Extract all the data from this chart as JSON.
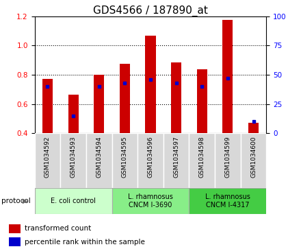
{
  "title": "GDS4566 / 187890_at",
  "samples": [
    "GSM1034592",
    "GSM1034593",
    "GSM1034594",
    "GSM1034595",
    "GSM1034596",
    "GSM1034597",
    "GSM1034598",
    "GSM1034599",
    "GSM1034600"
  ],
  "transformed_counts": [
    0.77,
    0.665,
    0.8,
    0.875,
    1.065,
    0.885,
    0.835,
    1.175,
    0.47
  ],
  "percentile_ranks": [
    40,
    15,
    40,
    43,
    46,
    43,
    40,
    47,
    10
  ],
  "bar_bottom": 0.4,
  "ylim_left": [
    0.4,
    1.2
  ],
  "ylim_right": [
    0,
    100
  ],
  "yticks_left": [
    0.4,
    0.6,
    0.8,
    1.0,
    1.2
  ],
  "yticks_right": [
    0,
    25,
    50,
    75,
    100
  ],
  "bar_color": "#cc0000",
  "marker_color": "#0000cc",
  "bar_width": 0.4,
  "protocols": [
    {
      "label": "E. coli control",
      "indices": [
        0,
        1,
        2
      ],
      "color": "#ccffcc"
    },
    {
      "label": "L. rhamnosus\nCNCM I-3690",
      "indices": [
        3,
        4,
        5
      ],
      "color": "#88ee88"
    },
    {
      "label": "L. rhamnosus\nCNCM I-4317",
      "indices": [
        6,
        7,
        8
      ],
      "color": "#44cc44"
    }
  ],
  "legend_items": [
    {
      "label": "transformed count",
      "color": "#cc0000"
    },
    {
      "label": "percentile rank within the sample",
      "color": "#0000cc"
    }
  ],
  "title_fontsize": 11,
  "tick_fontsize": 7.5,
  "label_fontsize": 8
}
